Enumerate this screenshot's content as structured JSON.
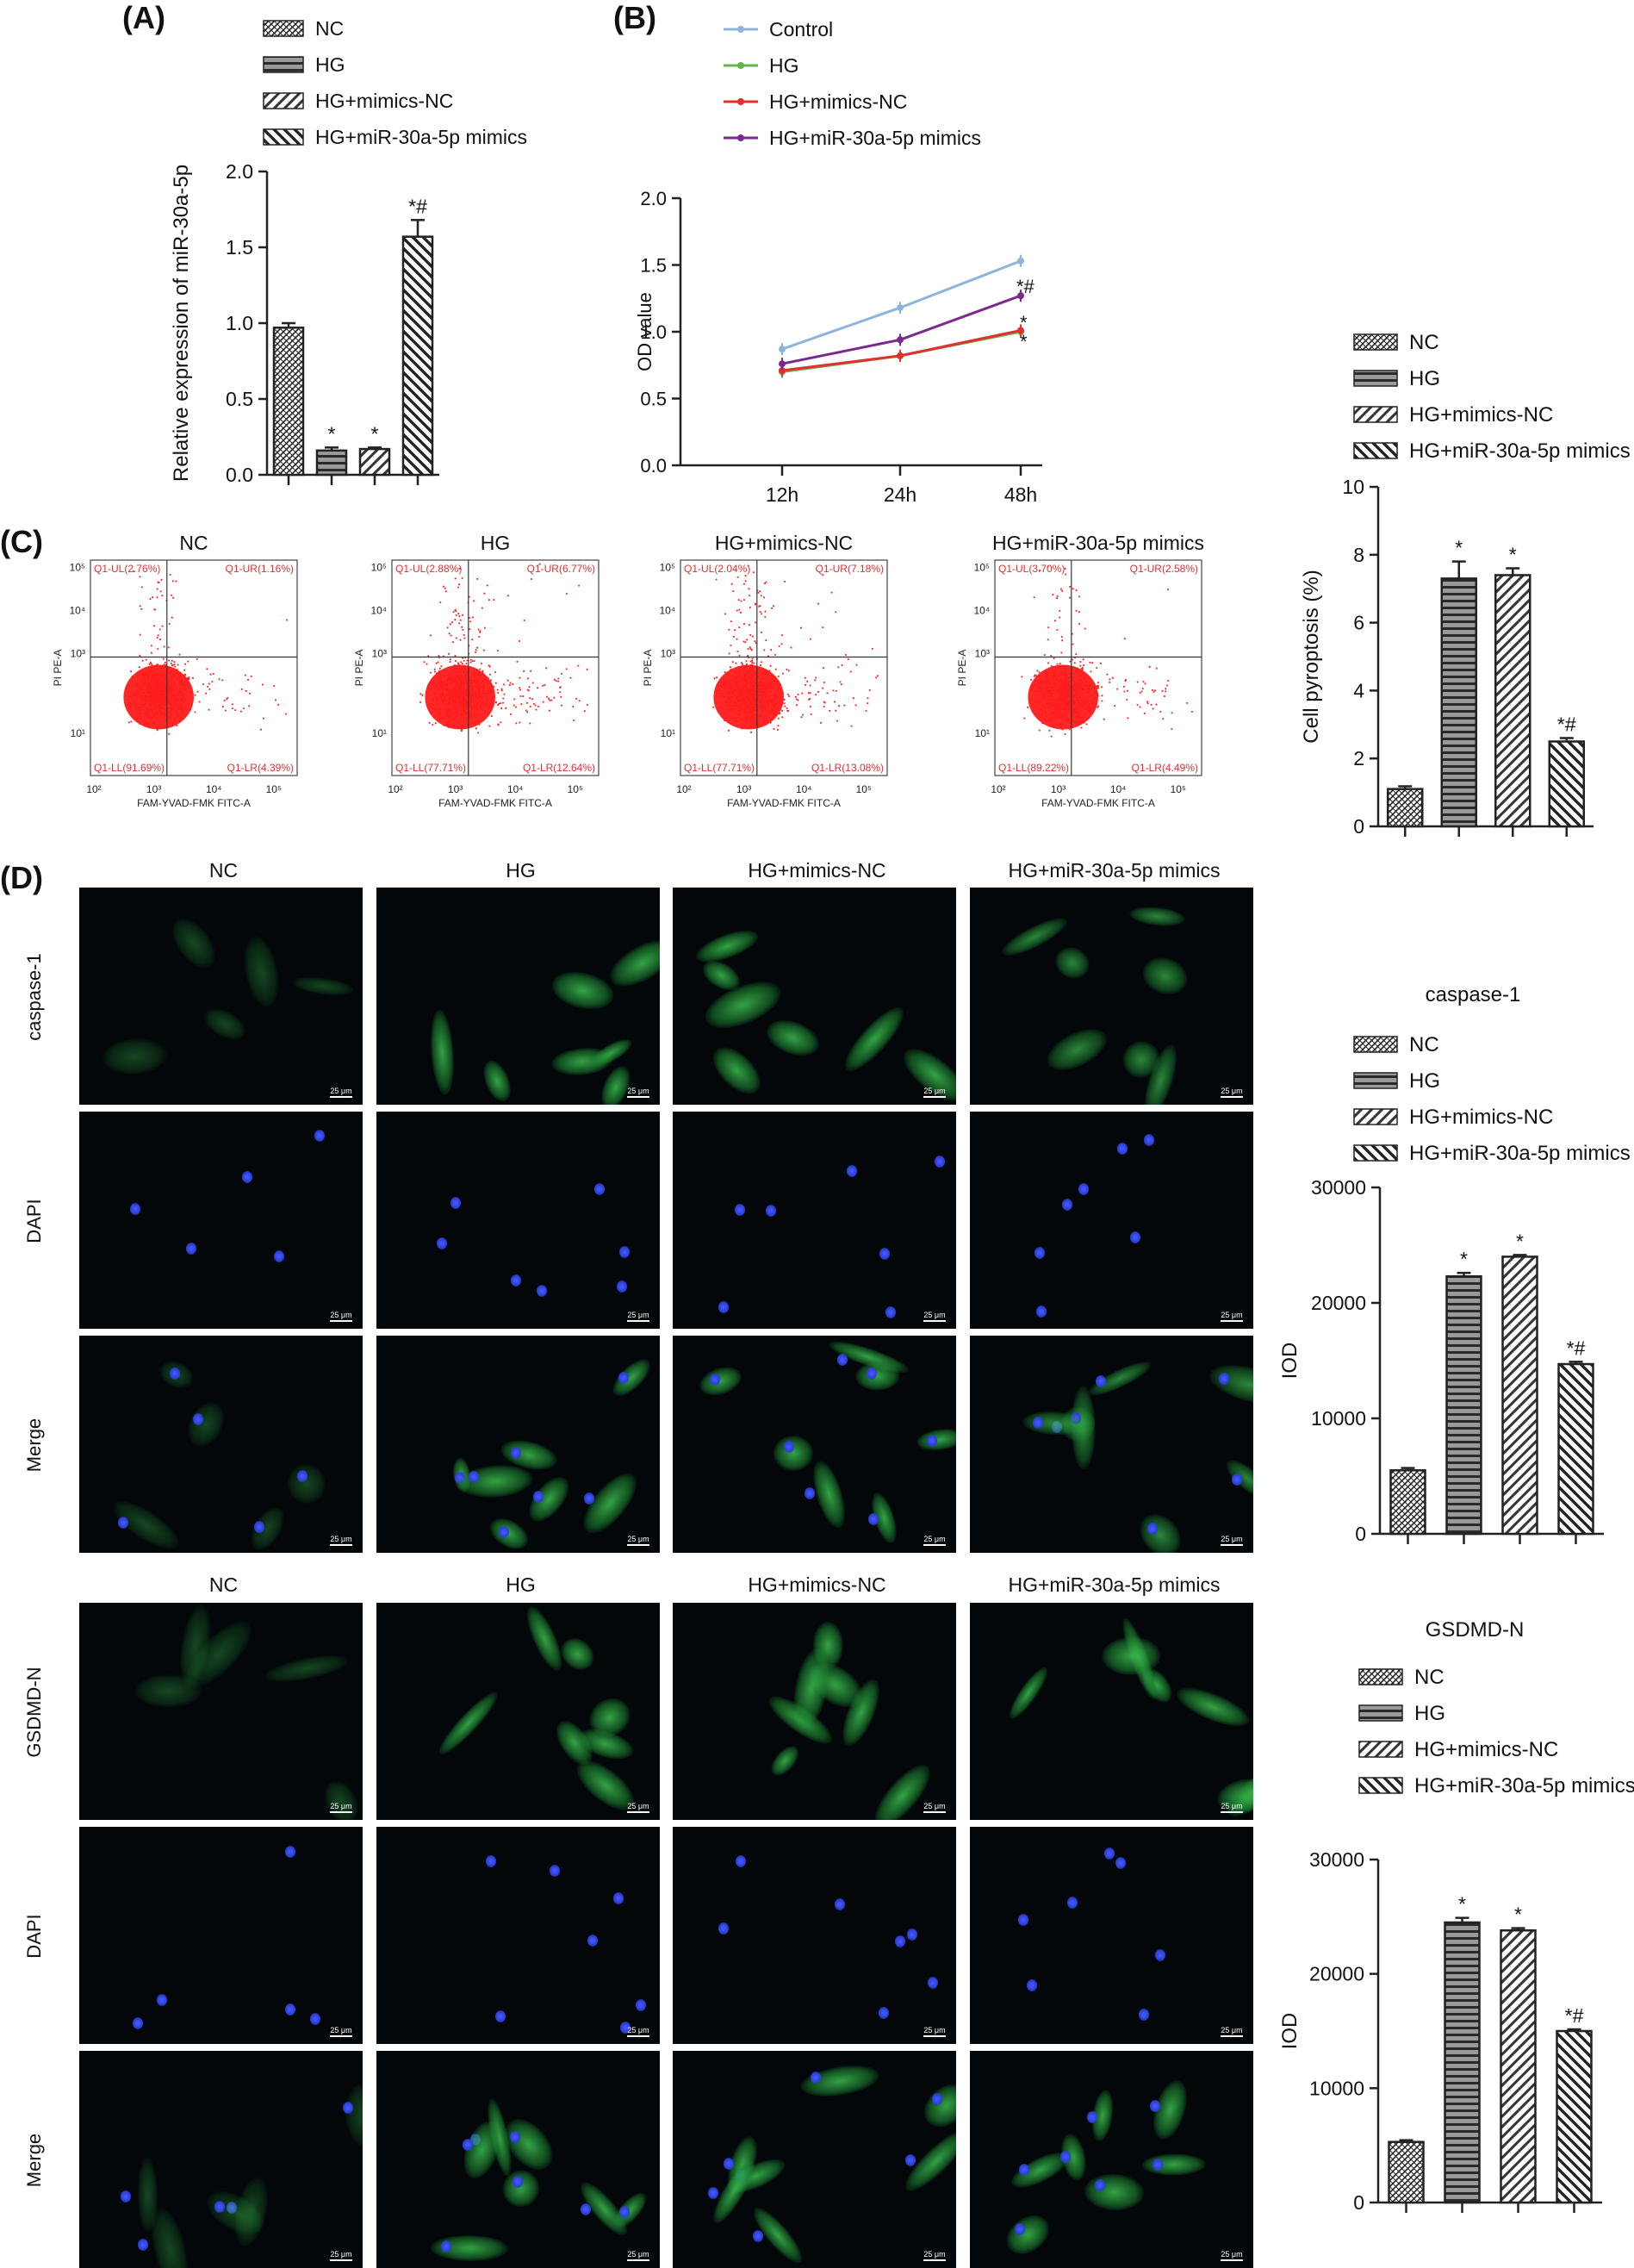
{
  "panel_labels": {
    "A": "(A)",
    "B": "(B)",
    "C": "(C)",
    "D": "(D)"
  },
  "groups": [
    "NC",
    "HG",
    "HG+mimics-NC",
    "HG+miR-30a-5p mimics"
  ],
  "colors": {
    "axis": "#222222",
    "control_line": "#8fb4dc",
    "hg_line": "#5fb84a",
    "mimicsnc_line": "#e03030",
    "mir_line": "#7a2a8e",
    "flow_dots": "#ff1a1a",
    "flow_text": "#e03030",
    "actin_green": "#2aa84a",
    "dapi_blue": "#2a3fd8"
  },
  "micro_columns": [
    "NC",
    "HG",
    "HG+mimics-NC",
    "HG+miR-30a-5p mimics"
  ],
  "micro_rows_top": [
    "caspase-1",
    "DAPI",
    "Merge"
  ],
  "micro_rows_bottom": [
    "GSDMD-N",
    "DAPI",
    "Merge"
  ],
  "scale_label": "25 μm",
  "flow": {
    "titles": [
      "NC",
      "HG",
      "HG+mimics-NC",
      "HG+miR-30a-5p mimics"
    ],
    "xlabel": "FAM-YVAD-FMK FITC-A",
    "ylabel": "PI PE-A",
    "ticks": [
      "10²",
      "10³",
      "10⁴",
      "10⁵"
    ],
    "ytick_low": "10¹",
    "quadrants": [
      {
        "UL": "Q1-UL(2.76%)",
        "UR": "Q1-UR(1.16%)",
        "LL": "Q1-LL(91.69%)",
        "LR": "Q1-LR(4.39%)"
      },
      {
        "UL": "Q1-UL(2.88%)",
        "UR": "Q1-UR(6.77%)",
        "LL": "Q1-LL(77.71%)",
        "LR": "Q1-LR(12.64%)"
      },
      {
        "UL": "Q1-UL(2.04%)",
        "UR": "Q1-UR(7.18%)",
        "LL": "Q1-LL(77.71%)",
        "LR": "Q1-LR(13.08%)"
      },
      {
        "UL": "Q1-UL(3.70%)",
        "UR": "Q1-UR(2.58%)",
        "LL": "Q1-LL(89.22%)",
        "LR": "Q1-LR(4.49%)"
      }
    ]
  },
  "chart_data": [
    {
      "id": "A",
      "type": "bar",
      "categories": [
        "NC",
        "HG",
        "HG+mimics-NC",
        "HG+miR-30a-5p mimics"
      ],
      "values": [
        0.97,
        0.16,
        0.17,
        1.57
      ],
      "errors": [
        0.03,
        0.02,
        0.01,
        0.11
      ],
      "annotations": [
        "",
        "*",
        "*",
        "*#"
      ],
      "ylabel": "Relative expression of miR-30a-5p",
      "ylim": [
        0,
        2.0
      ],
      "yticks": [
        "0.0",
        "0.5",
        "1.0",
        "1.5",
        "2.0"
      ],
      "legend": "top-left"
    },
    {
      "id": "B",
      "type": "line",
      "x": [
        "12h",
        "24h",
        "48h"
      ],
      "series": [
        {
          "name": "Control",
          "values": [
            0.87,
            1.18,
            1.53
          ]
        },
        {
          "name": "HG",
          "values": [
            0.7,
            0.82,
            1.0
          ]
        },
        {
          "name": "HG+mimics-NC",
          "values": [
            0.71,
            0.82,
            1.01
          ]
        },
        {
          "name": "HG+miR-30a-5p mimics",
          "values": [
            0.76,
            0.94,
            1.27
          ]
        }
      ],
      "end_annotations": [
        "*#",
        "*",
        "*"
      ],
      "ylabel": "OD value",
      "ylim": [
        0,
        2.0
      ],
      "yticks": [
        "0.0",
        "0.5",
        "1.0",
        "1.5",
        "2.0"
      ],
      "legend": "top"
    },
    {
      "id": "C",
      "type": "bar",
      "categories": [
        "NC",
        "HG",
        "HG+mimics-NC",
        "HG+miR-30a-5p mimics"
      ],
      "values": [
        1.1,
        7.3,
        7.4,
        2.5
      ],
      "errors": [
        0.08,
        0.5,
        0.2,
        0.1
      ],
      "annotations": [
        "",
        "*",
        "*",
        "*#"
      ],
      "ylabel": "Cell pyroptosis (%)",
      "ylim": [
        0,
        10
      ],
      "yticks": [
        "0",
        "2",
        "4",
        "6",
        "8",
        "10"
      ],
      "legend": "top"
    },
    {
      "id": "D1",
      "type": "bar",
      "title": "caspase-1",
      "categories": [
        "NC",
        "HG",
        "HG+mimics-NC",
        "HG+miR-30a-5p mimics"
      ],
      "values": [
        5500,
        22300,
        24000,
        14700
      ],
      "errors": [
        200,
        300,
        150,
        200
      ],
      "annotations": [
        "",
        "*",
        "*",
        "*#"
      ],
      "ylabel": "IOD",
      "ylim": [
        0,
        30000
      ],
      "yticks": [
        "0",
        "10000",
        "20000",
        "30000"
      ],
      "legend": "top"
    },
    {
      "id": "D2",
      "type": "bar",
      "title": "GSDMD-N",
      "categories": [
        "NC",
        "HG",
        "HG+mimics-NC",
        "HG+miR-30a-5p mimics"
      ],
      "values": [
        5300,
        24500,
        23800,
        15000
      ],
      "errors": [
        150,
        400,
        200,
        150
      ],
      "annotations": [
        "",
        "*",
        "*",
        "*#"
      ],
      "ylabel": "IOD",
      "ylim": [
        0,
        30000
      ],
      "yticks": [
        "0",
        "10000",
        "20000",
        "30000"
      ],
      "legend": "top"
    }
  ]
}
